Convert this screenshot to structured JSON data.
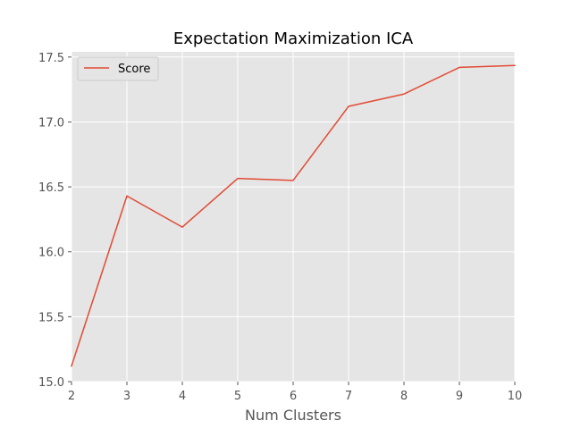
{
  "chart_data": {
    "type": "line",
    "title": "Expectation Maximization ICA",
    "xlabel": "Num Clusters",
    "ylabel": "",
    "x": [
      2,
      3,
      4,
      5,
      6,
      7,
      8,
      9,
      10
    ],
    "series": [
      {
        "name": "Score",
        "values": [
          15.12,
          16.43,
          16.19,
          16.565,
          16.55,
          17.12,
          17.215,
          17.42,
          17.435
        ]
      }
    ],
    "xlim": [
      2,
      10
    ],
    "ylim": [
      15.0,
      17.54
    ],
    "xticks": [
      "2",
      "3",
      "4",
      "5",
      "6",
      "7",
      "8",
      "9",
      "10"
    ],
    "yticks": [
      "15.0",
      "15.5",
      "16.0",
      "16.5",
      "17.0",
      "17.5"
    ],
    "grid": true,
    "legend_position": "top-left",
    "colors": {
      "series": "#E24A33",
      "background": "#E5E5E5",
      "grid": "#FFFFFF",
      "tick_text": "#555555",
      "title": "#000000"
    }
  }
}
